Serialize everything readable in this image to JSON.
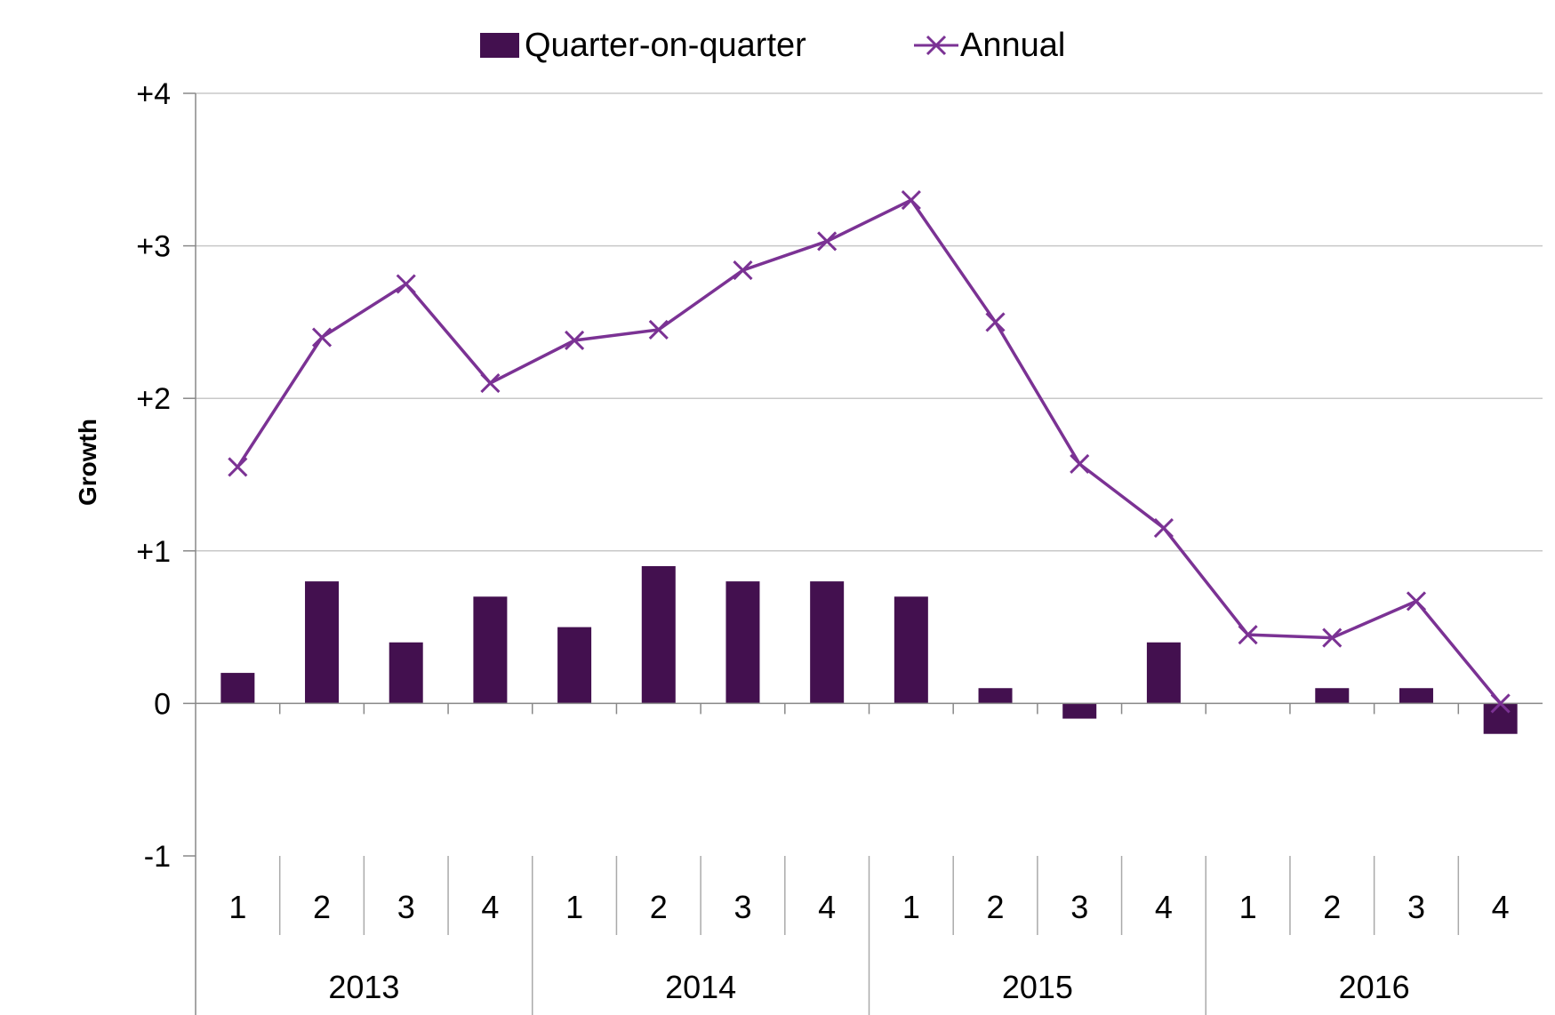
{
  "chart_data": {
    "type": "bar",
    "title": "",
    "xlabel": "",
    "ylabel": "Growth",
    "ylim": [
      -1,
      4
    ],
    "y_ticks": [
      "-1",
      "0",
      "+1",
      "+2",
      "+3",
      "+4"
    ],
    "grid": true,
    "legend_position": "top-center",
    "categories": [
      "1",
      "2",
      "3",
      "4",
      "1",
      "2",
      "3",
      "4",
      "1",
      "2",
      "3",
      "4",
      "1",
      "2",
      "3",
      "4"
    ],
    "groups": [
      {
        "label": "2013",
        "count": 4
      },
      {
        "label": "2014",
        "count": 4
      },
      {
        "label": "2015",
        "count": 4
      },
      {
        "label": "2016",
        "count": 4
      }
    ],
    "series": [
      {
        "name": "Quarter-on-quarter",
        "type": "bar",
        "color": "#43104f",
        "values": [
          0.2,
          0.8,
          0.4,
          0.7,
          0.5,
          0.9,
          0.8,
          0.8,
          0.7,
          0.1,
          -0.1,
          0.4,
          0.0,
          0.1,
          0.1,
          -0.2
        ]
      },
      {
        "name": "Annual",
        "type": "line",
        "marker": "x",
        "color": "#7b3294",
        "values": [
          1.55,
          2.4,
          2.75,
          2.1,
          2.38,
          2.45,
          2.84,
          3.03,
          3.3,
          2.5,
          1.57,
          1.15,
          0.45,
          0.43,
          0.67,
          0.0
        ]
      }
    ]
  }
}
